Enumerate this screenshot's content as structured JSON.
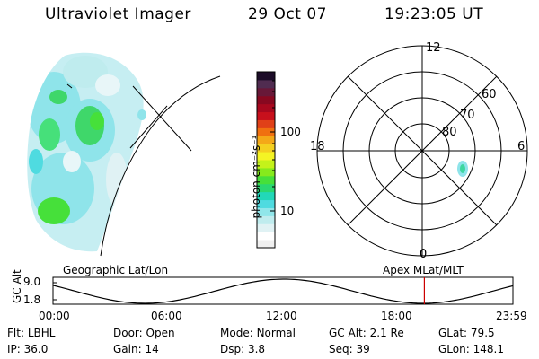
{
  "header": {
    "instrument": "Ultraviolet Imager",
    "date": "29 Oct 07",
    "time": "19:23:05 UT"
  },
  "colorbar": {
    "unit_label": "photon cm⁻²s⁻¹",
    "ticks": [
      "100",
      "10"
    ],
    "colors": [
      "#f0f0f0",
      "#ffffff",
      "#e0f2f4",
      "#bfecee",
      "#90e6ea",
      "#4fdbe0",
      "#22d8b8",
      "#2ad870",
      "#46e03a",
      "#86ea1c",
      "#c4f21a",
      "#f4f424",
      "#f4d020",
      "#f4a818",
      "#f07010",
      "#e04018",
      "#c8101c",
      "#a8081e",
      "#880820",
      "#681838",
      "#502c50",
      "#1c0c28"
    ],
    "brand_colors": {
      "cyan": "#bfe8f0",
      "green": "#3fd73a",
      "red": "#cc0000"
    }
  },
  "polar": {
    "mlt_labels": [
      "12",
      "18",
      "6",
      "0"
    ],
    "lat_labels": [
      "60",
      "70",
      "80"
    ]
  },
  "timeline": {
    "left_title": "Geographic Lat/Lon",
    "right_title": "Apex MLat/MLT",
    "ylabel": "GC Alt",
    "yticks": [
      "9.0",
      "1.8"
    ],
    "xticks": [
      "00:00",
      "06:00",
      "12:00",
      "18:00",
      "23:59"
    ],
    "current_marker_hour": 19.38
  },
  "info": {
    "row1": [
      {
        "key": "Flt:",
        "value": "LBHL"
      },
      {
        "key": "Door:",
        "value": "Open"
      },
      {
        "key": "Mode:",
        "value": "Normal"
      },
      {
        "key": "GC Alt:",
        "value": "2.1 Re"
      },
      {
        "key": "GLat:",
        "value": "79.5"
      }
    ],
    "row2": [
      {
        "key": "IP:",
        "value": "36.0"
      },
      {
        "key": "Gain:",
        "value": "14"
      },
      {
        "key": "Dsp:",
        "value": "3.8"
      },
      {
        "key": "Seq:",
        "value": "39"
      },
      {
        "key": "GLon:",
        "value": "148.1"
      }
    ]
  }
}
